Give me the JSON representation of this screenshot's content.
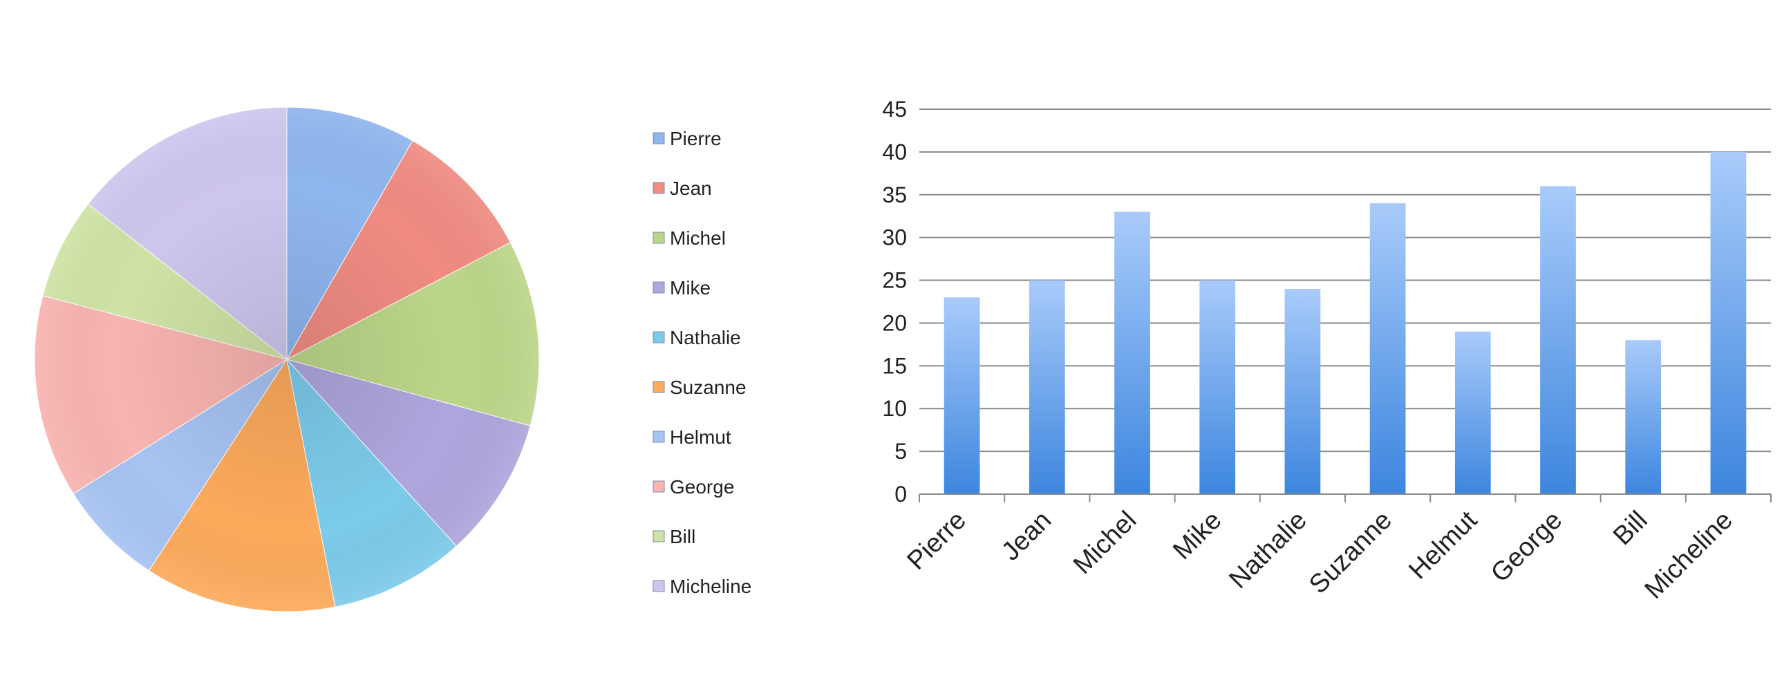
{
  "chart_data": [
    {
      "type": "pie",
      "title": "",
      "categories": [
        "Pierre",
        "Jean",
        "Michel",
        "Mike",
        "Nathalie",
        "Suzanne",
        "Helmut",
        "George",
        "Bill",
        "Micheline"
      ],
      "values": [
        23,
        25,
        33,
        25,
        24,
        34,
        19,
        36,
        18,
        40
      ],
      "colors": [
        "#8fb6ee",
        "#f08c82",
        "#bcd689",
        "#aea6dd",
        "#7ccbea",
        "#fdaa5c",
        "#a7c3f2",
        "#f8b4b0",
        "#cfe3a5",
        "#cfc6ee"
      ],
      "legend": {
        "position": "right",
        "entries": [
          "Pierre",
          "Jean",
          "Michel",
          "Mike",
          "Nathalie",
          "Suzanne",
          "Helmut",
          "George",
          "Bill",
          "Micheline"
        ]
      }
    },
    {
      "type": "bar",
      "title": "",
      "categories": [
        "Pierre",
        "Jean",
        "Michel",
        "Mike",
        "Nathalie",
        "Suzanne",
        "Helmut",
        "George",
        "Bill",
        "Micheline"
      ],
      "values": [
        23,
        25,
        33,
        25,
        24,
        34,
        19,
        36,
        18,
        40
      ],
      "xlabel": "",
      "ylabel": "",
      "ylim": [
        0,
        45
      ],
      "yticks": [
        "0",
        "5",
        "10",
        "15",
        "20",
        "25",
        "30",
        "35",
        "40",
        "45"
      ],
      "grid": true,
      "bar_color_top": "#a9cbfa",
      "bar_color_bottom": "#3d86de",
      "legend": "none"
    }
  ]
}
